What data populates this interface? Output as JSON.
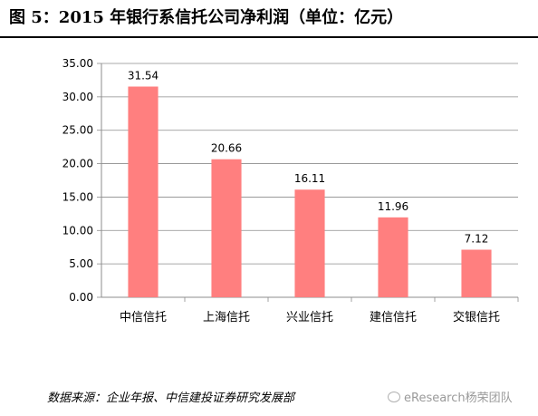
{
  "figure": {
    "title": "图 5：2015 年银行系信托公司净利润（单位：亿元）",
    "source": "数据来源：企业年报、中信建投证券研究发展部",
    "watermark": "eResearch杨荣团队"
  },
  "chart_data": {
    "type": "bar",
    "categories": [
      "中信信托",
      "上海信托",
      "兴业信托",
      "建信信托",
      "交银信托"
    ],
    "values": [
      31.54,
      20.66,
      16.11,
      11.96,
      7.12
    ],
    "data_labels": [
      "31.54",
      "20.66",
      "16.11",
      "11.96",
      "7.12"
    ],
    "y_ticks": [
      "0.00",
      "5.00",
      "10.00",
      "15.00",
      "20.00",
      "25.00",
      "30.00",
      "35.00"
    ],
    "ylim": [
      0,
      35
    ],
    "grid": true,
    "legend": "none",
    "bar_color": "#ff7f7f"
  }
}
